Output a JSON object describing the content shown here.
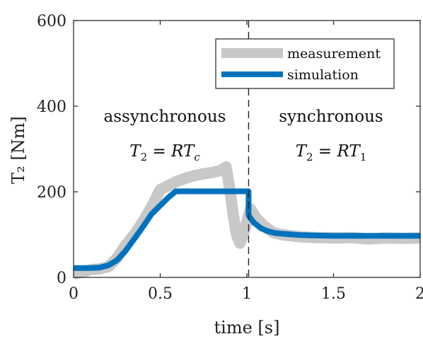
{
  "chart_data": {
    "type": "line",
    "xlabel": "time [s]",
    "ylabel": "T₂ [Nm]",
    "xlim": [
      0,
      2
    ],
    "ylim": [
      0,
      600
    ],
    "xticks": [
      0,
      0.5,
      1,
      1.5,
      2
    ],
    "xtick_labels": [
      "0",
      "0.5",
      "1",
      "1.5",
      "2"
    ],
    "yticks": [
      0,
      200,
      400,
      600
    ],
    "ytick_labels": [
      "0",
      "200",
      "400",
      "600"
    ],
    "grid": false,
    "legend_position": "top-right",
    "vline_x": 1.01,
    "series": [
      {
        "name": "measurement",
        "color": "#c8c8c8",
        "x": [
          0,
          0.05,
          0.1,
          0.15,
          0.2,
          0.25,
          0.3,
          0.35,
          0.4,
          0.45,
          0.5,
          0.55,
          0.6,
          0.65,
          0.7,
          0.75,
          0.8,
          0.85,
          0.88,
          0.9,
          0.92,
          0.94,
          0.96,
          0.98,
          1.0,
          1.02,
          1.05,
          1.1,
          1.15,
          1.2,
          1.3,
          1.4,
          1.5,
          1.6,
          1.7,
          1.8,
          1.9,
          2.0
        ],
        "y": [
          8,
          12,
          18,
          20,
          25,
          45,
          75,
          100,
          130,
          165,
          205,
          215,
          225,
          232,
          238,
          242,
          245,
          250,
          258,
          210,
          150,
          100,
          80,
          100,
          130,
          160,
          140,
          120,
          105,
          100,
          95,
          93,
          92,
          93,
          90,
          92,
          91,
          92
        ]
      },
      {
        "name": "simulation",
        "color": "#0072bd",
        "x": [
          0,
          0.1,
          0.15,
          0.2,
          0.25,
          0.3,
          0.35,
          0.4,
          0.45,
          0.5,
          0.55,
          0.59,
          0.7,
          0.8,
          0.9,
          1.01,
          1.01,
          1.04,
          1.08,
          1.12,
          1.16,
          1.2,
          1.3,
          1.4,
          1.5,
          1.6,
          1.7,
          1.8,
          1.9,
          2.0
        ],
        "y": [
          22,
          22,
          23,
          28,
          40,
          62,
          90,
          118,
          148,
          168,
          188,
          201,
          201,
          201,
          201,
          201,
          145,
          128,
          115,
          108,
          104,
          102,
          99,
          98,
          97,
          97,
          97,
          97,
          97,
          97
        ]
      }
    ],
    "annotations": [
      {
        "text": "assynchronous",
        "x": 0.58,
        "y": 375
      },
      {
        "prefix": "T",
        "sub": "2",
        "mid": " = RT",
        "sub2": "c",
        "x": 0.58,
        "y": 310
      },
      {
        "text": "synchronous",
        "x": 1.5,
        "y": 375
      },
      {
        "prefix": "T",
        "sub": "2",
        "mid": " = RT",
        "sub2": "1",
        "x": 1.5,
        "y": 310
      }
    ]
  }
}
